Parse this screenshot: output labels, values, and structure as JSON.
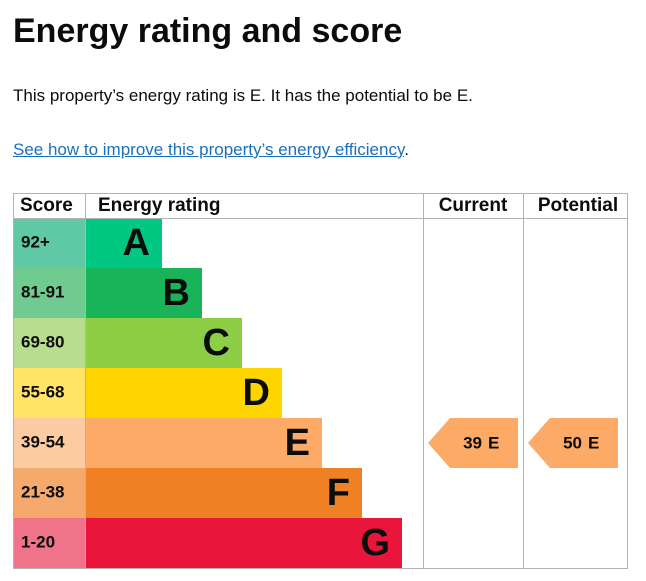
{
  "header": {
    "title": "Energy rating and score"
  },
  "intro": "This property’s energy rating is E. It has the potential to be E.",
  "link": {
    "text": "See how to improve this property’s energy efficiency",
    "suffix": "."
  },
  "table": {
    "headers": [
      "Score",
      "Energy rating",
      "Current",
      "Potential"
    ],
    "rows": [
      {
        "score": "92+",
        "rating": "A",
        "color": "#00c781",
        "score_color": "#5fc8a4"
      },
      {
        "score": "81-91",
        "rating": "B",
        "color": "#19b459",
        "score_color": "#6fcb8f"
      },
      {
        "score": "69-80",
        "rating": "C",
        "color": "#8dce46",
        "score_color": "#b7de8c"
      },
      {
        "score": "55-68",
        "rating": "D",
        "color": "#ffd500",
        "score_color": "#ffe466"
      },
      {
        "score": "39-54",
        "rating": "E",
        "color": "#fcaa65",
        "score_color": "#fdcba1"
      },
      {
        "score": "21-38",
        "rating": "F",
        "color": "#ef8023",
        "score_color": "#f5a96d"
      },
      {
        "score": "1-20",
        "rating": "G",
        "color": "#e9153b",
        "score_color": "#f07489"
      }
    ],
    "current": {
      "score": 39,
      "rating": "E"
    },
    "potential": {
      "score": 50,
      "rating": "E"
    }
  }
}
